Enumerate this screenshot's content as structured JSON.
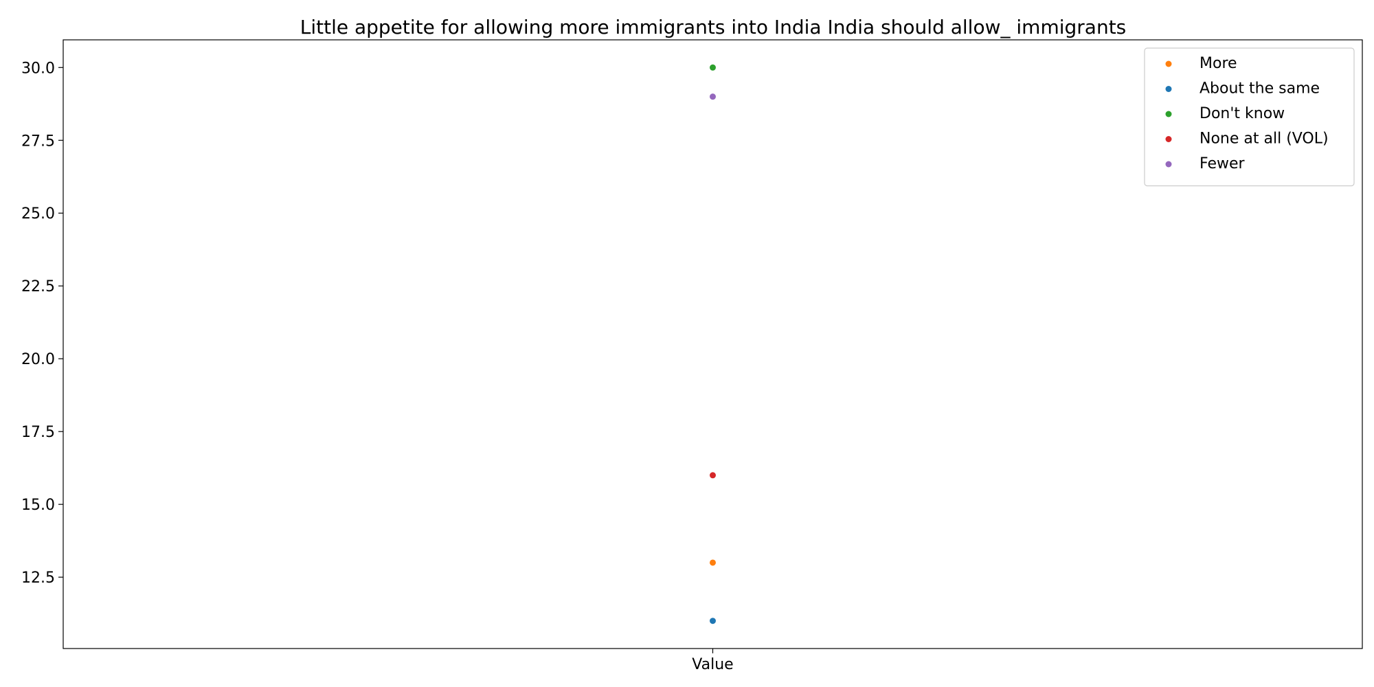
{
  "chart_data": {
    "type": "scatter",
    "title": "Little appetite for allowing more immigrants into India India should allow_ immigrants",
    "xlabel": "",
    "ylabel": "",
    "categories": [
      "Value"
    ],
    "series": [
      {
        "name": "More",
        "color": "#ff7f0e",
        "values": [
          13
        ]
      },
      {
        "name": "About the same",
        "color": "#1f77b4",
        "values": [
          11
        ]
      },
      {
        "name": "Don't know",
        "color": "#2ca02c",
        "values": [
          30
        ]
      },
      {
        "name": "None at all (VOL)",
        "color": "#d62728",
        "values": [
          16
        ]
      },
      {
        "name": "Fewer",
        "color": "#9467bd",
        "values": [
          29
        ]
      }
    ],
    "ylim": [
      10.05,
      30.95
    ],
    "yticks": [
      "12.5",
      "15.0",
      "17.5",
      "20.0",
      "22.5",
      "25.0",
      "27.5",
      "30.0"
    ],
    "grid": false,
    "legend_position": "top-right"
  }
}
